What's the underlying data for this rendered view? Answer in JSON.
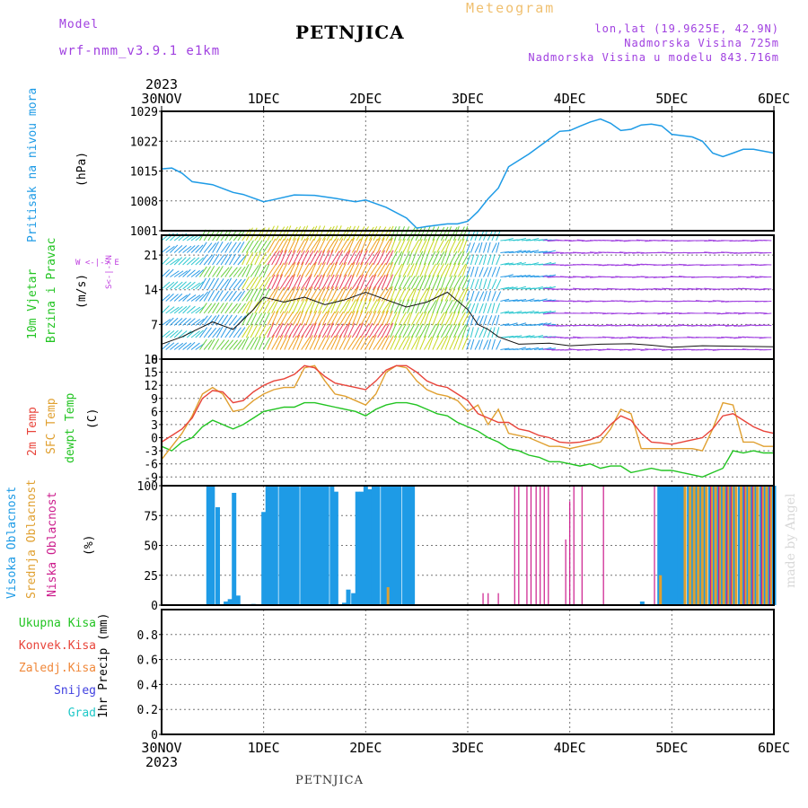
{
  "header": {
    "model_label": "Model",
    "model_name": "wrf-nmm_v3.9.1 e1km",
    "station": "PETNJICA",
    "product": "Meteogram",
    "coords": "lon,lat (19.9625E, 42.9N)",
    "elevation": "Nadmorska Visina 725m",
    "model_elevation": "Nadmorska Visina u modelu 843.716m"
  },
  "footer": {
    "station": "PETNJICA",
    "credit": "made by Angel"
  },
  "time_axis": {
    "year": "2023",
    "labels": [
      "30NOV",
      "1DEC",
      "2DEC",
      "3DEC",
      "4DEC",
      "5DEC",
      "6DEC"
    ]
  },
  "panels": {
    "pressure": {
      "label": "Pritisak na nivou mora",
      "unit": "(hPa)"
    },
    "wind": {
      "label1": "10m Vjetar",
      "label2": "Brzina i Pravac",
      "unit": "(m/s)",
      "compass": "W <-|-> E",
      "compass2": "S<-|->N"
    },
    "temp": {
      "label1": "2m Temp",
      "label2": "SFC Temp",
      "label3": "dewpt Temp",
      "unit": "(C)"
    },
    "cloud": {
      "label1": "Visoka Oblacnost",
      "label2": "Srednja Oblacnost",
      "label3": "Niska Oblacnost",
      "unit": "(%)"
    },
    "precip": {
      "unit": "1hr Precip (mm)",
      "legend": [
        "Ukupna Kisa",
        "Konvek.Kisa",
        "Zaledj.Kisa",
        "Snijeg",
        "Grad"
      ]
    }
  },
  "colors": {
    "pressure": "#1e9be6",
    "temp2m": "#e8443a",
    "sfc": "#e0a030",
    "dewpt": "#22c422",
    "high_cloud": "#1e9be6",
    "mid_cloud": "#e0a030",
    "low_cloud": "#cc1c8c",
    "rain": "#22c422",
    "conv": "#e8443a",
    "frz": "#f0883a",
    "snow": "#4040e0",
    "hail": "#20c8c8",
    "title_purple": "#a040e0",
    "orange": "#f0c070"
  },
  "chart_data": [
    {
      "type": "line",
      "title": "Pritisak na nivou mora",
      "ylabel": "(hPa)",
      "ylim": [
        1001,
        1029
      ],
      "yticks": [
        1001,
        1008,
        1015,
        1022,
        1029
      ],
      "xlim_days": [
        0,
        6
      ],
      "series": [
        {
          "name": "Pritisak na nivou mora",
          "x_days": [
            0,
            0.1,
            0.2,
            0.3,
            0.5,
            0.7,
            0.8,
            1.0,
            1.1,
            1.3,
            1.5,
            1.7,
            1.9,
            2.0,
            2.2,
            2.4,
            2.5,
            2.6,
            2.8,
            2.9,
            3.0,
            3.1,
            3.2,
            3.3,
            3.4,
            3.6,
            3.8,
            3.9,
            4.0,
            4.1,
            4.2,
            4.3,
            4.4,
            4.5,
            4.6,
            4.7,
            4.8,
            4.9,
            5.0,
            5.2,
            5.3,
            5.4,
            5.5,
            5.6,
            5.7,
            5.8,
            6.0
          ],
          "y": [
            1015.5,
            1015.7,
            1014.5,
            1012.5,
            1011.8,
            1010,
            1009.5,
            1007.8,
            1008.3,
            1009.4,
            1009.3,
            1008.6,
            1007.8,
            1008.2,
            1006.5,
            1004,
            1001.6,
            1002,
            1002.6,
            1002.6,
            1003.2,
            1005.5,
            1008.5,
            1011,
            1016,
            1019,
            1022.5,
            1024.3,
            1024.5,
            1025.5,
            1026.5,
            1027.2,
            1026.2,
            1024.5,
            1024.8,
            1025.8,
            1026,
            1025.6,
            1023.6,
            1023,
            1022,
            1019.2,
            1018.4,
            1019.2,
            1020.1,
            1020.1,
            1019.2
          ]
        }
      ]
    },
    {
      "type": "line",
      "title": "10m Vjetar Brzina i Pravac",
      "ylabel": "(m/s)",
      "ylim": [
        0,
        25
      ],
      "yticks": [
        0,
        7,
        14,
        21
      ],
      "series": [
        {
          "name": "10m Vjetar",
          "x_days": [
            0,
            0.2,
            0.4,
            0.5,
            0.7,
            0.9,
            1.0,
            1.2,
            1.4,
            1.6,
            1.8,
            2.0,
            2.2,
            2.4,
            2.6,
            2.8,
            3.0,
            3.1,
            3.2,
            3.3,
            3.5,
            3.8,
            4.0,
            4.3,
            4.6,
            4.8,
            5.0,
            5.3,
            5.6,
            6.0
          ],
          "y": [
            3,
            4.5,
            6.5,
            7.5,
            6,
            10,
            12.5,
            11.5,
            12.5,
            11,
            12,
            13.5,
            12,
            10.5,
            11.5,
            13.5,
            10,
            7,
            6,
            4.5,
            3,
            3.2,
            2.7,
            3,
            3.1,
            2.8,
            2.4,
            2.7,
            2.6,
            2.5
          ]
        }
      ]
    },
    {
      "type": "line",
      "ylabel": "(C)",
      "ylim": [
        -11,
        18
      ],
      "yticks": [
        -9,
        -6,
        -3,
        0,
        3,
        6,
        9,
        12,
        15,
        18
      ],
      "series": [
        {
          "name": "2m Temp",
          "x_days": [
            0,
            0.1,
            0.2,
            0.3,
            0.4,
            0.5,
            0.6,
            0.7,
            0.8,
            0.9,
            1.0,
            1.1,
            1.2,
            1.3,
            1.4,
            1.5,
            1.6,
            1.7,
            1.8,
            1.9,
            2.0,
            2.1,
            2.2,
            2.3,
            2.4,
            2.5,
            2.6,
            2.7,
            2.8,
            2.9,
            3.0,
            3.1,
            3.2,
            3.3,
            3.4,
            3.5,
            3.6,
            3.7,
            3.8,
            3.9,
            4.0,
            4.1,
            4.2,
            4.3,
            4.4,
            4.5,
            4.6,
            4.7,
            4.8,
            4.9,
            5.0,
            5.1,
            5.2,
            5.3,
            5.4,
            5.5,
            5.6,
            5.7,
            5.8,
            5.9,
            6.0
          ],
          "y": [
            -1,
            0.5,
            2,
            4.5,
            9,
            10.8,
            10.5,
            8,
            8.5,
            10.5,
            12,
            13,
            13.5,
            14.5,
            16.5,
            16,
            14,
            12.5,
            12,
            11.5,
            11,
            13,
            15.5,
            16.5,
            16.5,
            15,
            13,
            12,
            11.5,
            10,
            8.5,
            5.5,
            4.5,
            3.5,
            3.5,
            2,
            1.5,
            0.5,
            0,
            -1,
            -1.2,
            -1,
            -0.5,
            0.5,
            3,
            5,
            4,
            1,
            -1,
            -1.2,
            -1.5,
            -1,
            -0.5,
            0,
            2,
            5,
            5.5,
            4,
            2.5,
            1.5,
            1
          ]
        },
        {
          "name": "SFC Temp",
          "x_days": [
            0,
            0.1,
            0.2,
            0.3,
            0.4,
            0.5,
            0.6,
            0.7,
            0.8,
            0.9,
            1.0,
            1.1,
            1.2,
            1.3,
            1.4,
            1.5,
            1.6,
            1.7,
            1.8,
            1.9,
            2.0,
            2.1,
            2.2,
            2.3,
            2.4,
            2.5,
            2.6,
            2.7,
            2.8,
            2.9,
            3.0,
            3.1,
            3.2,
            3.3,
            3.4,
            3.5,
            3.6,
            3.7,
            3.8,
            3.9,
            4.0,
            4.1,
            4.2,
            4.3,
            4.4,
            4.5,
            4.6,
            4.7,
            4.8,
            4.9,
            5.0,
            5.1,
            5.2,
            5.3,
            5.4,
            5.5,
            5.6,
            5.7,
            5.8,
            5.9,
            6.0
          ],
          "y": [
            -5,
            -2,
            1,
            5,
            10,
            11.5,
            10,
            6,
            6.5,
            8.5,
            10,
            11,
            11.5,
            11.5,
            16,
            16.5,
            13,
            10,
            9.5,
            8.5,
            7.5,
            10,
            15,
            16.5,
            16,
            13,
            11,
            10,
            9.5,
            8.5,
            6,
            7.5,
            3,
            6.5,
            1,
            0.5,
            0,
            -1,
            -2,
            -2,
            -2.5,
            -2,
            -1.5,
            -1,
            2,
            6.5,
            5.5,
            -2.5,
            -2.5,
            -2.5,
            -2.5,
            -2.5,
            -2.5,
            -3,
            2,
            8,
            7.5,
            -1,
            -1,
            -2,
            -2
          ]
        },
        {
          "name": "dewpt Temp",
          "x_days": [
            0,
            0.1,
            0.2,
            0.3,
            0.4,
            0.5,
            0.6,
            0.7,
            0.8,
            0.9,
            1.0,
            1.1,
            1.2,
            1.3,
            1.4,
            1.5,
            1.6,
            1.7,
            1.8,
            1.9,
            2.0,
            2.1,
            2.2,
            2.3,
            2.4,
            2.5,
            2.6,
            2.7,
            2.8,
            2.9,
            3.0,
            3.1,
            3.2,
            3.3,
            3.4,
            3.5,
            3.6,
            3.7,
            3.8,
            3.9,
            4.0,
            4.1,
            4.2,
            4.3,
            4.4,
            4.5,
            4.6,
            4.7,
            4.8,
            4.9,
            5.0,
            5.1,
            5.2,
            5.3,
            5.4,
            5.5,
            5.6,
            5.7,
            5.8,
            5.9,
            6.0
          ],
          "y": [
            -2,
            -3,
            -1,
            0,
            2.5,
            4,
            3,
            2,
            3,
            4.5,
            6,
            6.5,
            7,
            7,
            8,
            8,
            7.5,
            7,
            6.5,
            6,
            5,
            6.5,
            7.5,
            8,
            8,
            7.5,
            6.5,
            5.5,
            5,
            3.5,
            2.5,
            1.5,
            0,
            -1,
            -2.5,
            -3,
            -4,
            -4.5,
            -5.5,
            -5.5,
            -6,
            -6.5,
            -6,
            -7,
            -6.5,
            -6.5,
            -8,
            -7.5,
            -7,
            -7.5,
            -7.5,
            -8,
            -8.5,
            -9,
            -8,
            -7,
            -3,
            -3.5,
            -3,
            -3.5,
            -3.5
          ]
        }
      ]
    },
    {
      "type": "bar",
      "ylabel": "(%)",
      "ylim": [
        0,
        100
      ],
      "yticks": [
        0,
        25,
        50,
        75,
        100
      ],
      "series": [
        {
          "name": "Visoka Oblacnost",
          "x_days": [
            0.46,
            0.5,
            0.55,
            0.63,
            0.67,
            0.71,
            0.75,
            0.9,
            1.0,
            1.04,
            1.08,
            1.12,
            1.17,
            1.21,
            1.25,
            1.29,
            1.33,
            1.38,
            1.42,
            1.46,
            1.5,
            1.54,
            1.58,
            1.62,
            1.67,
            1.71,
            1.79,
            1.83,
            1.88,
            1.92,
            1.96,
            2.0,
            2.04,
            2.08,
            2.12,
            2.17,
            2.21,
            2.25,
            2.29,
            2.33,
            2.38,
            2.42,
            2.46,
            4.71,
            4.88,
            4.92,
            4.96,
            5.0,
            5.04,
            5.08,
            5.12,
            5.17,
            5.21,
            5.25,
            5.29,
            5.33,
            5.38,
            5.42,
            5.46,
            5.5,
            5.54,
            5.58,
            5.62,
            5.67,
            5.71,
            5.75,
            5.79,
            5.83,
            5.88,
            5.92,
            5.96,
            6.0
          ],
          "y": [
            100,
            100,
            82,
            3,
            5,
            94,
            8,
            1,
            78,
            100,
            100,
            100,
            100,
            100,
            100,
            100,
            100,
            100,
            100,
            100,
            100,
            100,
            100,
            100,
            100,
            95,
            2,
            13,
            10,
            95,
            95,
            100,
            97,
            100,
            100,
            100,
            100,
            100,
            100,
            100,
            100,
            100,
            100,
            3,
            100,
            100,
            100,
            100,
            100,
            100,
            100,
            100,
            100,
            100,
            100,
            100,
            100,
            100,
            100,
            100,
            100,
            100,
            100,
            100,
            100,
            100,
            100,
            100,
            100,
            100,
            100,
            100
          ]
        },
        {
          "name": "Srednja Oblacnost",
          "x_days": [
            2.21,
            4.88,
            5.12,
            5.17,
            5.21,
            5.25,
            5.29,
            5.33,
            5.38,
            5.42,
            5.46,
            5.5,
            5.54,
            5.58,
            5.62,
            5.67,
            5.71,
            5.75,
            5.79,
            5.83,
            5.88,
            5.92,
            5.96
          ],
          "y": [
            15,
            25,
            100,
            100,
            100,
            100,
            100,
            100,
            100,
            100,
            100,
            100,
            100,
            100,
            100,
            100,
            100,
            100,
            100,
            100,
            100,
            100,
            100
          ]
        },
        {
          "name": "Niska Oblacnost",
          "x_days": [
            3.15,
            3.2,
            3.3,
            3.46,
            3.5,
            3.58,
            3.62,
            3.67,
            3.71,
            3.75,
            3.79,
            3.96,
            4.0,
            4.04,
            4.12,
            4.33,
            4.83,
            5.38,
            5.46,
            5.54,
            5.58,
            5.71,
            5.79,
            5.88,
            5.96
          ],
          "y": [
            10,
            10,
            10,
            100,
            100,
            100,
            100,
            100,
            100,
            100,
            100,
            55,
            87,
            100,
            100,
            100,
            100,
            100,
            100,
            100,
            100,
            100,
            100,
            100,
            100
          ]
        }
      ]
    },
    {
      "type": "bar",
      "ylabel": "1hr Precip (mm)",
      "ylim": [
        0,
        1
      ],
      "yticks": [
        0,
        0.2,
        0.4,
        0.6,
        0.8
      ],
      "series": [
        {
          "name": "Ukupna Kisa",
          "x_days": [],
          "y": []
        },
        {
          "name": "Konvek.Kisa",
          "x_days": [],
          "y": []
        },
        {
          "name": "Zaledj.Kisa",
          "x_days": [],
          "y": []
        },
        {
          "name": "Snijeg",
          "x_days": [],
          "y": []
        },
        {
          "name": "Grad",
          "x_days": [],
          "y": []
        }
      ]
    }
  ]
}
